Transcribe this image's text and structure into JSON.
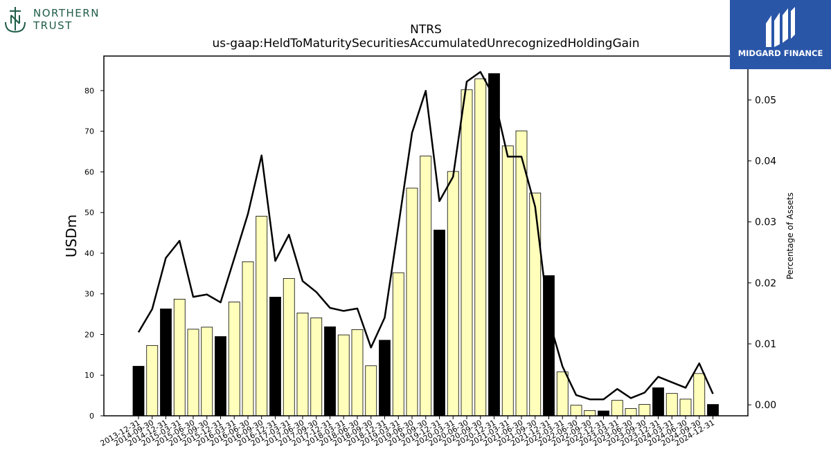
{
  "brand_left": {
    "line1": "NORTHERN",
    "line2": "TRUST",
    "color": "#1f5c46"
  },
  "brand_right": {
    "name": "MIDGARD FINANCE",
    "bg_color": "#2a56a8"
  },
  "chart_data": {
    "type": "bar",
    "title": "NTRS",
    "subtitle": "us-gaap:HeldToMaturitySecuritiesAccumulatedUnrecognizedHoldingGain",
    "ylabel": "USDm",
    "y2label": "Percentage of Assets",
    "ylim": [
      0,
      88.5
    ],
    "y2lim": [
      -0.0018,
      0.0572
    ],
    "yticks": [
      0,
      10,
      20,
      30,
      40,
      50,
      60,
      70,
      80
    ],
    "y2ticks": [
      0.0,
      0.01,
      0.02,
      0.03,
      0.04,
      0.05
    ],
    "y2tick_labels": [
      "0.00",
      "0.01",
      "0.02",
      "0.03",
      "0.04",
      "0.05"
    ],
    "bar_color_default": "#ffffbb",
    "bar_color_year_end": "#000000",
    "line_color": "#000000",
    "categories": [
      "2013-12-31",
      "2014-09-30",
      "2014-12-31",
      "2015-03-31",
      "2015-06-30",
      "2015-09-30",
      "2015-12-31",
      "2016-03-31",
      "2016-06-30",
      "2016-09-30",
      "2016-12-31",
      "2017-03-31",
      "2017-06-30",
      "2017-09-30",
      "2017-12-31",
      "2018-03-31",
      "2018-06-30",
      "2018-09-30",
      "2018-12-31",
      "2019-03-31",
      "2019-06-30",
      "2019-09-30",
      "2019-12-31",
      "2020-03-31",
      "2020-06-30",
      "2020-09-30",
      "2020-12-31",
      "2021-03-31",
      "2021-06-30",
      "2021-09-30",
      "2021-12-31",
      "2022-03-31",
      "2022-06-30",
      "2022-09-30",
      "2022-12-31",
      "2023-03-31",
      "2023-06-30",
      "2023-09-30",
      "2023-12-31",
      "2024-03-31",
      "2024-06-30",
      "2024-09-30",
      "2024-12-31"
    ],
    "series": [
      {
        "type": "bar",
        "values": [
          12.2,
          17.3,
          26.3,
          28.7,
          21.3,
          21.8,
          19.5,
          28.0,
          37.9,
          49.1,
          29.2,
          33.8,
          25.3,
          24.1,
          21.9,
          19.9,
          21.2,
          12.3,
          18.6,
          35.2,
          56.0,
          63.9,
          45.7,
          60.1,
          80.2,
          82.9,
          84.2,
          66.4,
          70.1,
          54.8,
          34.5,
          10.8,
          2.6,
          1.3,
          1.2,
          3.8,
          1.8,
          2.8,
          6.9,
          5.5,
          4.1,
          10.4,
          2.8
        ]
      },
      {
        "type": "line",
        "axis": "right",
        "values": [
          0.0119,
          0.0157,
          0.0241,
          0.0269,
          0.0177,
          0.0181,
          0.0168,
          0.024,
          0.0313,
          0.0409,
          0.0236,
          0.0279,
          0.0203,
          0.0185,
          0.0159,
          0.0154,
          0.0158,
          0.0094,
          0.0143,
          0.0293,
          0.0446,
          0.0515,
          0.0334,
          0.0374,
          0.053,
          0.0546,
          0.0505,
          0.0407,
          0.0407,
          0.0325,
          0.014,
          0.0063,
          0.0016,
          0.0009,
          0.0009,
          0.0026,
          0.0011,
          0.002,
          0.0046,
          0.0037,
          0.0028,
          0.0068,
          0.0018
        ]
      }
    ]
  }
}
